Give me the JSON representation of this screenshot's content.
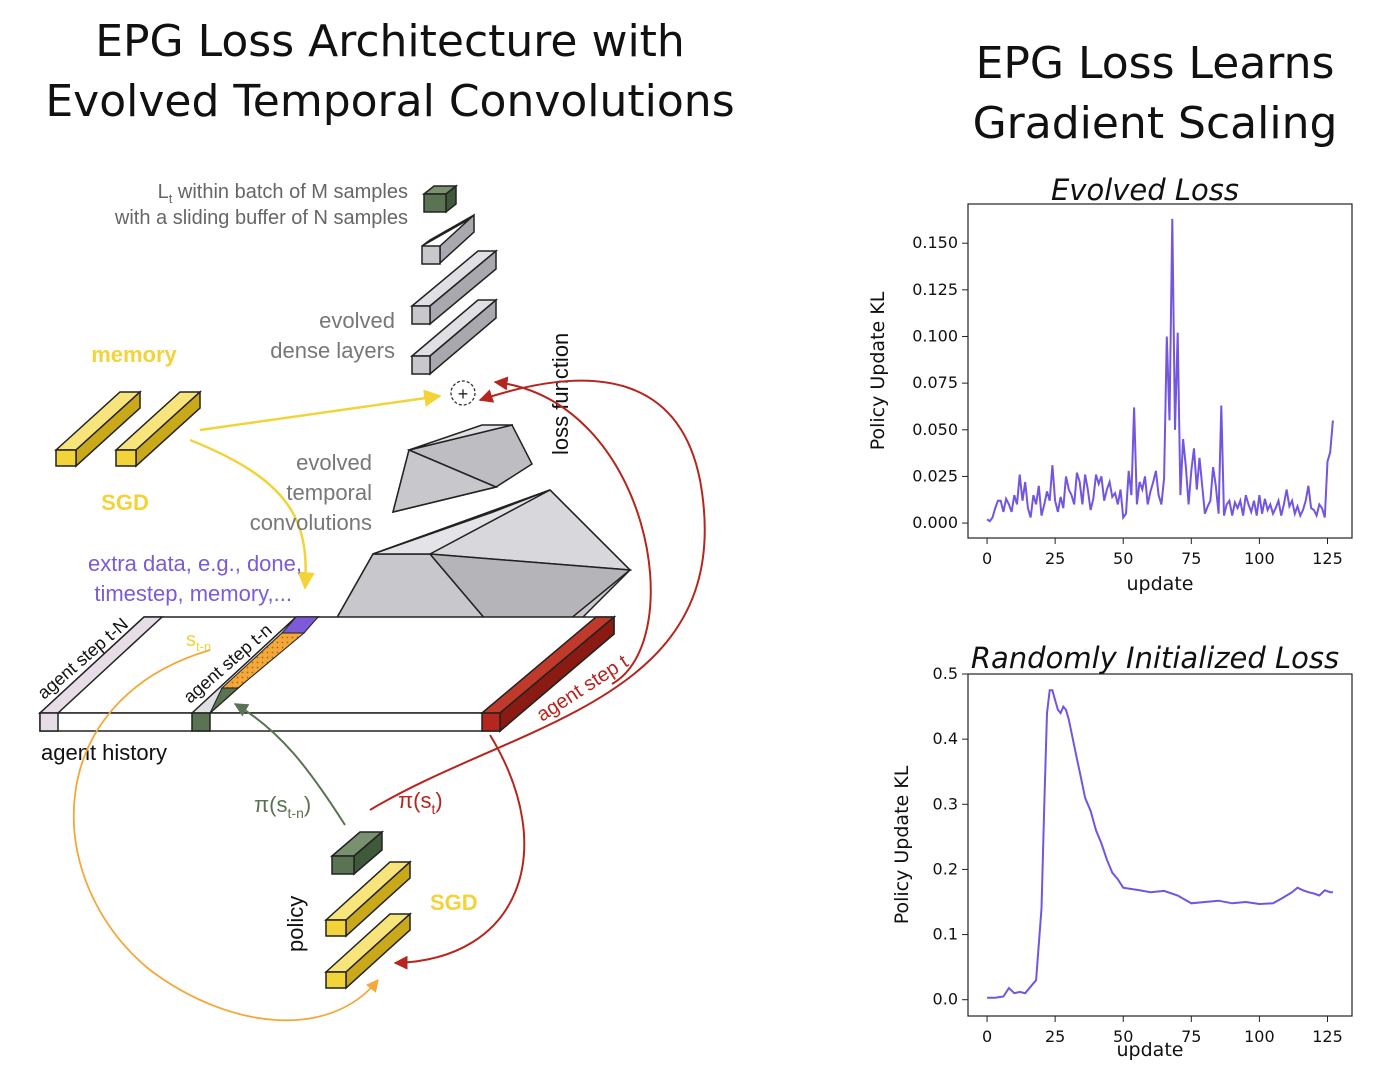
{
  "left_title": [
    "EPG Loss Architecture with",
    "Evolved Temporal Convolutions"
  ],
  "right_title": [
    "EPG Loss Learns",
    "Gradient Scaling"
  ],
  "diagram": {
    "batch_label_line1_base": "L",
    "batch_label_line1_sub": "t",
    "batch_label_line1_rest": " within batch of  M samples",
    "batch_label_line2": "with a sliding buffer of N samples",
    "dense_label": [
      "evolved",
      "dense layers"
    ],
    "memory_label": "memory",
    "sgd_top_label": "SGD",
    "loss_function_label": "loss function",
    "plus_symbol": "+",
    "conv_label": [
      "evolved",
      "temporal",
      "convolutions"
    ],
    "extra_data_label": [
      "extra data, e.g., done,",
      "timestep, memory,..."
    ],
    "step_t_N_label": "agent step t-N",
    "step_t_n_label": "agent step t-n",
    "step_t_label": "agent step t",
    "s_label_base": "s",
    "s_label_sub": "t-n",
    "history_label": "agent history",
    "pi_tn_base": "π(s",
    "pi_tn_sub": "t-n",
    "pi_tn_close": ")",
    "pi_t_base": "π(s",
    "pi_t_sub": "t",
    "pi_t_close": ")",
    "policy_label": "policy",
    "sgd_bottom_label": "SGD",
    "colors": {
      "yellow": "#f2d33a",
      "dark_green": "#5a7352",
      "gray": "#c8c8cc",
      "red": "#b5261e",
      "purple": "#7b5bd8",
      "light": "#e6dde6",
      "orange_dotted": "#f4a83a"
    }
  },
  "chart_data": [
    {
      "type": "line",
      "title": "Evolved Loss",
      "xlabel": "update",
      "ylabel": "Policy Update KL",
      "xlim": [
        -7,
        134
      ],
      "ylim": [
        -0.008,
        0.171
      ],
      "xticks": [
        0,
        25,
        50,
        75,
        100,
        125
      ],
      "yticks": [
        0.0,
        0.025,
        0.05,
        0.075,
        0.1,
        0.125,
        0.15
      ],
      "ytick_labels": [
        "0.000",
        "0.025",
        "0.050",
        "0.075",
        "0.100",
        "0.125",
        "0.150"
      ],
      "color": "#7355e0",
      "x": [
        0,
        1,
        2,
        3,
        4,
        5,
        6,
        7,
        8,
        9,
        10,
        11,
        12,
        13,
        14,
        15,
        16,
        17,
        18,
        19,
        20,
        21,
        22,
        23,
        24,
        25,
        26,
        27,
        28,
        29,
        30,
        31,
        32,
        33,
        34,
        35,
        36,
        37,
        38,
        39,
        40,
        41,
        42,
        43,
        44,
        45,
        46,
        47,
        48,
        49,
        50,
        51,
        52,
        53,
        54,
        55,
        56,
        57,
        58,
        59,
        60,
        61,
        62,
        63,
        64,
        65,
        66,
        67,
        68,
        69,
        70,
        71,
        72,
        73,
        74,
        75,
        76,
        77,
        78,
        79,
        80,
        81,
        82,
        83,
        84,
        85,
        86,
        87,
        88,
        89,
        90,
        91,
        92,
        93,
        94,
        95,
        96,
        97,
        98,
        99,
        100,
        101,
        102,
        103,
        104,
        105,
        106,
        107,
        108,
        109,
        110,
        111,
        112,
        113,
        114,
        115,
        116,
        117,
        118,
        119,
        120,
        121,
        122,
        123,
        124,
        125,
        126,
        127
      ],
      "values": [
        0.002,
        0.001,
        0.003,
        0.008,
        0.012,
        0.012,
        0.006,
        0.013,
        0.01,
        0.006,
        0.015,
        0.01,
        0.026,
        0.012,
        0.022,
        0.008,
        0.003,
        0.015,
        0.01,
        0.02,
        0.004,
        0.01,
        0.017,
        0.012,
        0.031,
        0.012,
        0.006,
        0.014,
        0.008,
        0.025,
        0.018,
        0.015,
        0.01,
        0.027,
        0.022,
        0.01,
        0.026,
        0.018,
        0.007,
        0.013,
        0.026,
        0.021,
        0.025,
        0.012,
        0.018,
        0.022,
        0.014,
        0.016,
        0.01,
        0.018,
        0.003,
        0.005,
        0.028,
        0.015,
        0.062,
        0.01,
        0.022,
        0.018,
        0.025,
        0.01,
        0.017,
        0.022,
        0.028,
        0.015,
        0.01,
        0.024,
        0.1,
        0.055,
        0.163,
        0.05,
        0.102,
        0.015,
        0.045,
        0.03,
        0.01,
        0.028,
        0.04,
        0.018,
        0.035,
        0.02,
        0.005,
        0.009,
        0.012,
        0.03,
        0.02,
        0.005,
        0.063,
        0.004,
        0.01,
        0.012,
        0.004,
        0.011,
        0.008,
        0.012,
        0.004,
        0.015,
        0.01,
        0.006,
        0.012,
        0.004,
        0.015,
        0.005,
        0.013,
        0.007,
        0.01,
        0.005,
        0.008,
        0.012,
        0.004,
        0.01,
        0.018,
        0.009,
        0.012,
        0.005,
        0.009,
        0.004,
        0.007,
        0.012,
        0.02,
        0.008,
        0.007,
        0.004,
        0.01,
        0.008,
        0.003,
        0.033,
        0.038,
        0.055
      ]
    },
    {
      "type": "line",
      "title": "Randomly Initialized Loss",
      "xlabel": "update",
      "ylabel": "Policy Update KL",
      "xlim": [
        -7,
        134
      ],
      "ylim": [
        -0.025,
        0.5
      ],
      "xticks": [
        0,
        25,
        50,
        75,
        100,
        125
      ],
      "yticks": [
        0.0,
        0.1,
        0.2,
        0.3,
        0.4,
        0.5
      ],
      "ytick_labels": [
        "0.0",
        "0.1",
        "0.2",
        "0.3",
        "0.4",
        "0.5"
      ],
      "color": "#7355e0",
      "x": [
        0,
        3,
        6,
        8,
        10,
        12,
        14,
        16,
        18,
        20,
        21,
        22,
        23,
        24,
        25,
        26,
        27,
        28,
        29,
        30,
        31,
        32,
        33,
        34,
        35,
        36,
        38,
        40,
        42,
        44,
        46,
        48,
        50,
        53,
        56,
        60,
        65,
        70,
        75,
        80,
        85,
        90,
        95,
        100,
        105,
        108,
        110,
        112,
        114,
        116,
        118,
        120,
        122,
        124,
        126,
        127
      ],
      "values": [
        0.003,
        0.003,
        0.005,
        0.018,
        0.01,
        0.012,
        0.01,
        0.02,
        0.03,
        0.14,
        0.3,
        0.44,
        0.475,
        0.475,
        0.46,
        0.445,
        0.44,
        0.45,
        0.445,
        0.43,
        0.41,
        0.39,
        0.37,
        0.35,
        0.33,
        0.31,
        0.29,
        0.26,
        0.24,
        0.215,
        0.195,
        0.185,
        0.172,
        0.17,
        0.168,
        0.165,
        0.167,
        0.16,
        0.148,
        0.15,
        0.152,
        0.148,
        0.15,
        0.147,
        0.148,
        0.155,
        0.16,
        0.165,
        0.172,
        0.168,
        0.165,
        0.163,
        0.16,
        0.168,
        0.165,
        0.165
      ]
    }
  ]
}
